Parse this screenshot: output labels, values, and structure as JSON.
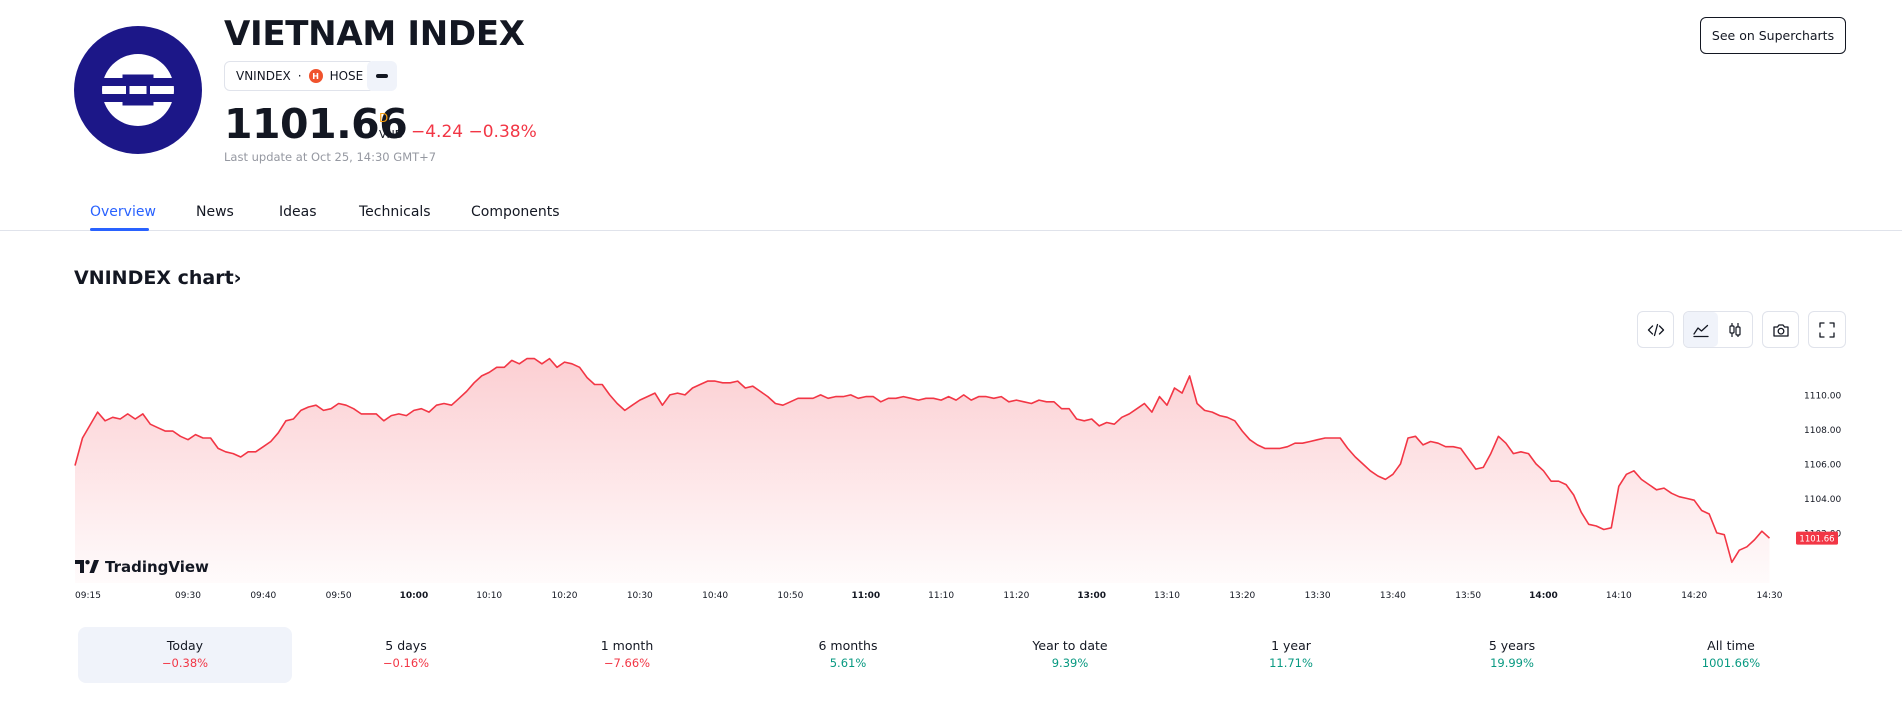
{
  "header": {
    "title": "VIETNAM INDEX",
    "ticker": "VNINDEX",
    "separator": "·",
    "exchange": "HOSE",
    "exchange_badge": "H",
    "price": "1101.66",
    "period": "D",
    "currency": "VND",
    "change": "−4.24 −0.38%",
    "last_update": "Last update at Oct 25, 14:30 GMT+7",
    "supercharts_button": "See on Supercharts",
    "logo_color": "#1c1788"
  },
  "tabs": [
    {
      "label": "Overview",
      "active": true
    },
    {
      "label": "News",
      "active": false
    },
    {
      "label": "Ideas",
      "active": false
    },
    {
      "label": "Technicals",
      "active": false
    },
    {
      "label": "Components",
      "active": false
    }
  ],
  "section": {
    "title": "VNINDEX chart",
    "arrow": "›"
  },
  "toolbar": {
    "icons": [
      "embed-code-icon",
      "area-chart-icon",
      "candlestick-icon",
      "camera-icon",
      "fullscreen-icon"
    ],
    "active": "area-chart-icon"
  },
  "branding": {
    "name": "TradingView"
  },
  "chart_data": {
    "type": "area",
    "title": "",
    "xlabel": "",
    "ylabel": "",
    "line_color": "#f23645",
    "fill_color": "#f23645",
    "ylim": [
      1099.1,
      1112.6
    ],
    "y_ticks": [
      1102,
      1104,
      1106,
      1108,
      1110
    ],
    "y_tick_labels": [
      "1102.00",
      "1104.00",
      "1106.00",
      "1108.00",
      "1110.00"
    ],
    "x_ticks": [
      {
        "t": 0,
        "label": "09:15",
        "bold": false
      },
      {
        "t": 15,
        "label": "09:30",
        "bold": false
      },
      {
        "t": 25,
        "label": "09:40",
        "bold": false
      },
      {
        "t": 35,
        "label": "09:50",
        "bold": false
      },
      {
        "t": 45,
        "label": "10:00",
        "bold": true
      },
      {
        "t": 55,
        "label": "10:10",
        "bold": false
      },
      {
        "t": 65,
        "label": "10:20",
        "bold": false
      },
      {
        "t": 75,
        "label": "10:30",
        "bold": false
      },
      {
        "t": 85,
        "label": "10:40",
        "bold": false
      },
      {
        "t": 95,
        "label": "10:50",
        "bold": false
      },
      {
        "t": 105,
        "label": "11:00",
        "bold": true
      },
      {
        "t": 115,
        "label": "11:10",
        "bold": false
      },
      {
        "t": 125,
        "label": "11:20",
        "bold": false
      },
      {
        "t": 135,
        "label": "13:00",
        "bold": true
      },
      {
        "t": 145,
        "label": "13:10",
        "bold": false
      },
      {
        "t": 155,
        "label": "13:20",
        "bold": false
      },
      {
        "t": 165,
        "label": "13:30",
        "bold": false
      },
      {
        "t": 175,
        "label": "13:40",
        "bold": false
      },
      {
        "t": 185,
        "label": "13:50",
        "bold": false
      },
      {
        "t": 195,
        "label": "14:00",
        "bold": true
      },
      {
        "t": 205,
        "label": "14:10",
        "bold": false
      },
      {
        "t": 215,
        "label": "14:20",
        "bold": false
      },
      {
        "t": 225,
        "label": "14:30",
        "bold": false
      }
    ],
    "series": [
      {
        "values": [
          [
            0,
            1105.9
          ],
          [
            1,
            1107.5
          ],
          [
            3,
            1109.0
          ],
          [
            4,
            1108.5
          ],
          [
            5,
            1108.7
          ],
          [
            6,
            1108.6
          ],
          [
            7,
            1108.9
          ],
          [
            8,
            1108.6
          ],
          [
            9,
            1108.9
          ],
          [
            10,
            1108.3
          ],
          [
            11,
            1108.1
          ],
          [
            12,
            1107.9
          ],
          [
            13,
            1107.9
          ],
          [
            14,
            1107.6
          ],
          [
            15,
            1107.4
          ],
          [
            16,
            1107.7
          ],
          [
            17,
            1107.5
          ],
          [
            18,
            1107.5
          ],
          [
            19,
            1106.9
          ],
          [
            20,
            1106.7
          ],
          [
            21,
            1106.6
          ],
          [
            22,
            1106.4
          ],
          [
            23,
            1106.7
          ],
          [
            24,
            1106.7
          ],
          [
            25,
            1107.0
          ],
          [
            26,
            1107.3
          ],
          [
            27,
            1107.8
          ],
          [
            28,
            1108.5
          ],
          [
            29,
            1108.6
          ],
          [
            30,
            1109.1
          ],
          [
            31,
            1109.3
          ],
          [
            32,
            1109.4
          ],
          [
            33,
            1109.1
          ],
          [
            34,
            1109.2
          ],
          [
            35,
            1109.5
          ],
          [
            36,
            1109.4
          ],
          [
            37,
            1109.2
          ],
          [
            38,
            1108.9
          ],
          [
            39,
            1108.9
          ],
          [
            40,
            1108.9
          ],
          [
            41,
            1108.5
          ],
          [
            42,
            1108.8
          ],
          [
            43,
            1108.9
          ],
          [
            44,
            1108.8
          ],
          [
            45,
            1109.1
          ],
          [
            46,
            1109.2
          ],
          [
            47,
            1109.0
          ],
          [
            48,
            1109.4
          ],
          [
            49,
            1109.5
          ],
          [
            50,
            1109.4
          ],
          [
            51,
            1109.8
          ],
          [
            52,
            1110.2
          ],
          [
            53,
            1110.7
          ],
          [
            54,
            1111.1
          ],
          [
            55,
            1111.3
          ],
          [
            56,
            1111.6
          ],
          [
            57,
            1111.6
          ],
          [
            58,
            1112.0
          ],
          [
            59,
            1111.8
          ],
          [
            60,
            1112.1
          ],
          [
            61,
            1112.1
          ],
          [
            62,
            1111.8
          ],
          [
            63,
            1112.1
          ],
          [
            64,
            1111.6
          ],
          [
            65,
            1111.9
          ],
          [
            66,
            1111.8
          ],
          [
            67,
            1111.6
          ],
          [
            68,
            1111.0
          ],
          [
            69,
            1110.6
          ],
          [
            70,
            1110.6
          ],
          [
            71,
            1110.0
          ],
          [
            72,
            1109.5
          ],
          [
            73,
            1109.1
          ],
          [
            74,
            1109.4
          ],
          [
            75,
            1109.7
          ],
          [
            76,
            1109.9
          ],
          [
            77,
            1110.1
          ],
          [
            78,
            1109.4
          ],
          [
            79,
            1110.0
          ],
          [
            80,
            1110.1
          ],
          [
            81,
            1110.0
          ],
          [
            82,
            1110.4
          ],
          [
            83,
            1110.6
          ],
          [
            84,
            1110.8
          ],
          [
            85,
            1110.8
          ],
          [
            86,
            1110.7
          ],
          [
            87,
            1110.7
          ],
          [
            88,
            1110.8
          ],
          [
            89,
            1110.4
          ],
          [
            90,
            1110.5
          ],
          [
            91,
            1110.2
          ],
          [
            92,
            1109.9
          ],
          [
            93,
            1109.5
          ],
          [
            94,
            1109.4
          ],
          [
            95,
            1109.6
          ],
          [
            96,
            1109.8
          ],
          [
            97,
            1109.8
          ],
          [
            98,
            1109.8
          ],
          [
            99,
            1110.0
          ],
          [
            100,
            1109.8
          ],
          [
            101,
            1109.9
          ],
          [
            102,
            1109.9
          ],
          [
            103,
            1110.0
          ],
          [
            104,
            1109.8
          ],
          [
            105,
            1109.9
          ],
          [
            106,
            1109.9
          ],
          [
            107,
            1109.6
          ],
          [
            108,
            1109.8
          ],
          [
            109,
            1109.8
          ],
          [
            110,
            1109.9
          ],
          [
            111,
            1109.8
          ],
          [
            112,
            1109.7
          ],
          [
            113,
            1109.8
          ],
          [
            114,
            1109.8
          ],
          [
            115,
            1109.7
          ],
          [
            116,
            1109.9
          ],
          [
            117,
            1109.7
          ],
          [
            118,
            1110.0
          ],
          [
            119,
            1109.7
          ],
          [
            120,
            1109.9
          ],
          [
            121,
            1109.9
          ],
          [
            122,
            1109.8
          ],
          [
            123,
            1109.9
          ],
          [
            124,
            1109.6
          ],
          [
            125,
            1109.7
          ],
          [
            126,
            1109.6
          ],
          [
            127,
            1109.5
          ],
          [
            128,
            1109.7
          ],
          [
            129,
            1109.6
          ],
          [
            130,
            1109.6
          ],
          [
            131,
            1109.2
          ],
          [
            132,
            1109.2
          ],
          [
            133,
            1108.6
          ],
          [
            134,
            1108.5
          ],
          [
            135,
            1108.6
          ],
          [
            136,
            1108.2
          ],
          [
            137,
            1108.4
          ],
          [
            138,
            1108.3
          ],
          [
            139,
            1108.7
          ],
          [
            140,
            1108.9
          ],
          [
            141,
            1109.2
          ],
          [
            142,
            1109.5
          ],
          [
            143,
            1109.0
          ],
          [
            144,
            1109.9
          ],
          [
            145,
            1109.4
          ],
          [
            146,
            1110.4
          ],
          [
            147,
            1110.1
          ],
          [
            148,
            1111.1
          ],
          [
            149,
            1109.5
          ],
          [
            150,
            1109.1
          ],
          [
            151,
            1109.0
          ],
          [
            152,
            1108.8
          ],
          [
            153,
            1108.7
          ],
          [
            154,
            1108.5
          ],
          [
            155,
            1107.9
          ],
          [
            156,
            1107.4
          ],
          [
            157,
            1107.1
          ],
          [
            158,
            1106.9
          ],
          [
            159,
            1106.9
          ],
          [
            160,
            1106.9
          ],
          [
            161,
            1107.0
          ],
          [
            162,
            1107.2
          ],
          [
            163,
            1107.2
          ],
          [
            164,
            1107.3
          ],
          [
            165,
            1107.4
          ],
          [
            166,
            1107.5
          ],
          [
            167,
            1107.5
          ],
          [
            168,
            1107.5
          ],
          [
            169,
            1106.9
          ],
          [
            170,
            1106.4
          ],
          [
            171,
            1106.0
          ],
          [
            172,
            1105.6
          ],
          [
            173,
            1105.3
          ],
          [
            174,
            1105.1
          ],
          [
            175,
            1105.4
          ],
          [
            176,
            1106.0
          ],
          [
            177,
            1107.5
          ],
          [
            178,
            1107.6
          ],
          [
            179,
            1107.1
          ],
          [
            180,
            1107.3
          ],
          [
            181,
            1107.2
          ],
          [
            182,
            1107.0
          ],
          [
            183,
            1107.0
          ],
          [
            184,
            1106.9
          ],
          [
            185,
            1106.3
          ],
          [
            186,
            1105.7
          ],
          [
            187,
            1105.8
          ],
          [
            188,
            1106.6
          ],
          [
            189,
            1107.6
          ],
          [
            190,
            1107.2
          ],
          [
            191,
            1106.6
          ],
          [
            192,
            1106.7
          ],
          [
            193,
            1106.6
          ],
          [
            194,
            1106.0
          ],
          [
            195,
            1105.6
          ],
          [
            196,
            1105.0
          ],
          [
            197,
            1105.0
          ],
          [
            198,
            1104.8
          ],
          [
            199,
            1104.2
          ],
          [
            200,
            1103.2
          ],
          [
            201,
            1102.5
          ],
          [
            202,
            1102.4
          ],
          [
            203,
            1102.2
          ],
          [
            204,
            1102.3
          ],
          [
            205,
            1104.7
          ],
          [
            206,
            1105.4
          ],
          [
            207,
            1105.6
          ],
          [
            208,
            1105.1
          ],
          [
            209,
            1104.8
          ],
          [
            210,
            1104.5
          ],
          [
            211,
            1104.6
          ],
          [
            212,
            1104.3
          ],
          [
            213,
            1104.1
          ],
          [
            214,
            1104.0
          ],
          [
            215,
            1103.9
          ],
          [
            216,
            1103.3
          ],
          [
            217,
            1103.1
          ],
          [
            218,
            1102.0
          ],
          [
            219,
            1101.9
          ],
          [
            220,
            1100.3
          ],
          [
            221,
            1101.0
          ],
          [
            222,
            1101.2
          ],
          [
            223,
            1101.6
          ],
          [
            224,
            1102.1
          ],
          [
            225,
            1101.7
          ]
        ]
      }
    ],
    "last_value_label": "1101.66",
    "grid": false,
    "legend": "none"
  },
  "ranges": [
    {
      "label": "Today",
      "value": "−0.38%",
      "sign": "neg",
      "active": true
    },
    {
      "label": "5 days",
      "value": "−0.16%",
      "sign": "neg",
      "active": false
    },
    {
      "label": "1 month",
      "value": "−7.66%",
      "sign": "neg",
      "active": false
    },
    {
      "label": "6 months",
      "value": "5.61%",
      "sign": "pos",
      "active": false
    },
    {
      "label": "Year to date",
      "value": "9.39%",
      "sign": "pos",
      "active": false
    },
    {
      "label": "1 year",
      "value": "11.71%",
      "sign": "pos",
      "active": false
    },
    {
      "label": "5 years",
      "value": "19.99%",
      "sign": "pos",
      "active": false
    },
    {
      "label": "All time",
      "value": "1001.66%",
      "sign": "pos",
      "active": false
    }
  ]
}
